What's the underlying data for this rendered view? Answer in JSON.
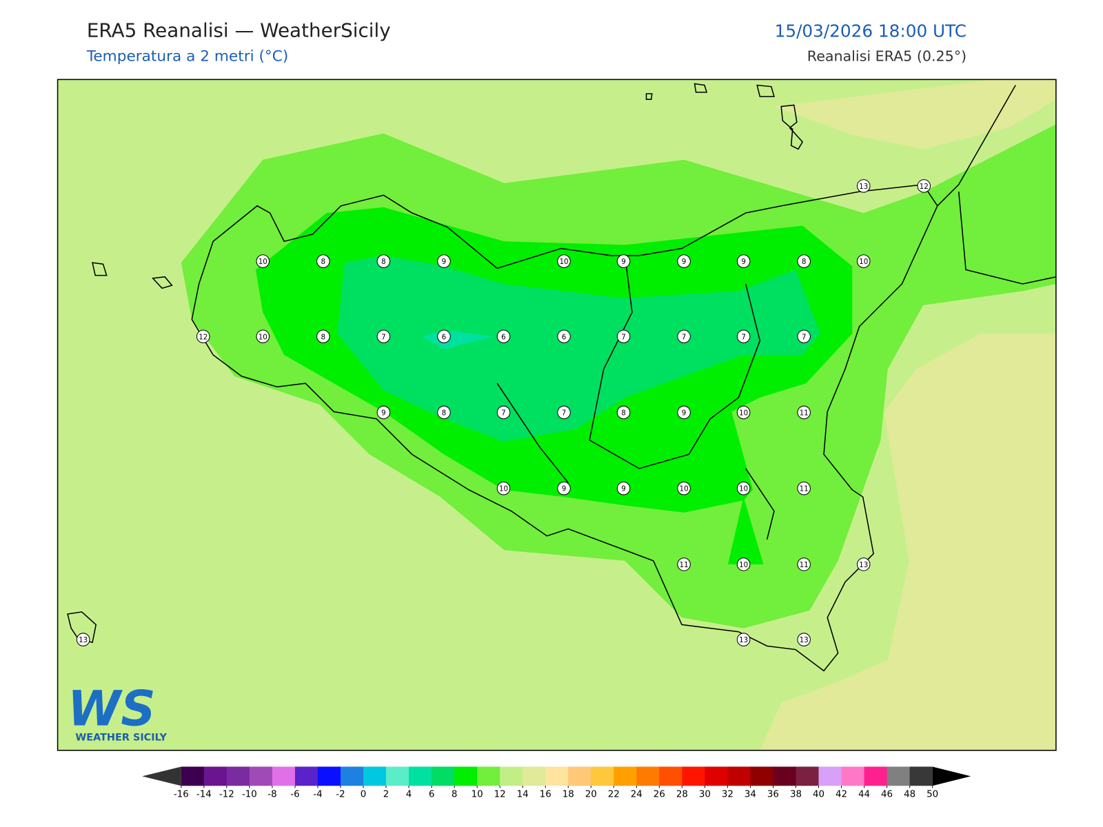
{
  "header": {
    "title": "ERA5 Reanalisi — WeatherSicily",
    "subtitle": "Temperatura a 2 metri (°C)",
    "datetime": "15/03/2026 18:00 UTC",
    "source": "Reanalisi ERA5 (0.25°)"
  },
  "stations": [
    10,
    8,
    8,
    9,
    10,
    9,
    9,
    9,
    8,
    10,
    12,
    10,
    8,
    7,
    6,
    6,
    6,
    7,
    7,
    7,
    7,
    9,
    8,
    7,
    7,
    8,
    9,
    10,
    11,
    10,
    9,
    9,
    10,
    10,
    11,
    11,
    10,
    11,
    13,
    13,
    12,
    13,
    13,
    13
  ],
  "colorbar": {
    "ticks": [
      -16,
      -14,
      -12,
      -10,
      -8,
      -6,
      -4,
      -2,
      0,
      2,
      4,
      6,
      8,
      10,
      12,
      14,
      16,
      18,
      20,
      22,
      24,
      26,
      28,
      30,
      32,
      34,
      36,
      38,
      40,
      42,
      44,
      46,
      48,
      50
    ],
    "colors": [
      "#3d0050",
      "#6a1490",
      "#7b2aa0",
      "#a04ab8",
      "#e070e8",
      "#5a22c8",
      "#0a10ff",
      "#1e80e0",
      "#00c8e0",
      "#5aeec8",
      "#00e0a0",
      "#00dc64",
      "#00ee00",
      "#72ee3c",
      "#c2ee88",
      "#e0ea98",
      "#ffe4a0",
      "#ffc878",
      "#ffc83c",
      "#ffa000",
      "#ff7a00",
      "#ff5000",
      "#ff1400",
      "#e00000",
      "#c00000",
      "#900000",
      "#6a0020",
      "#7a2040",
      "#d8a0f8",
      "#ff78c8",
      "#ff2090",
      "#808080",
      "#383838"
    ],
    "under_color": "#333333",
    "over_color": "#000000"
  },
  "logo": {
    "letters": "WS",
    "name": "WEATHER SICILY"
  }
}
